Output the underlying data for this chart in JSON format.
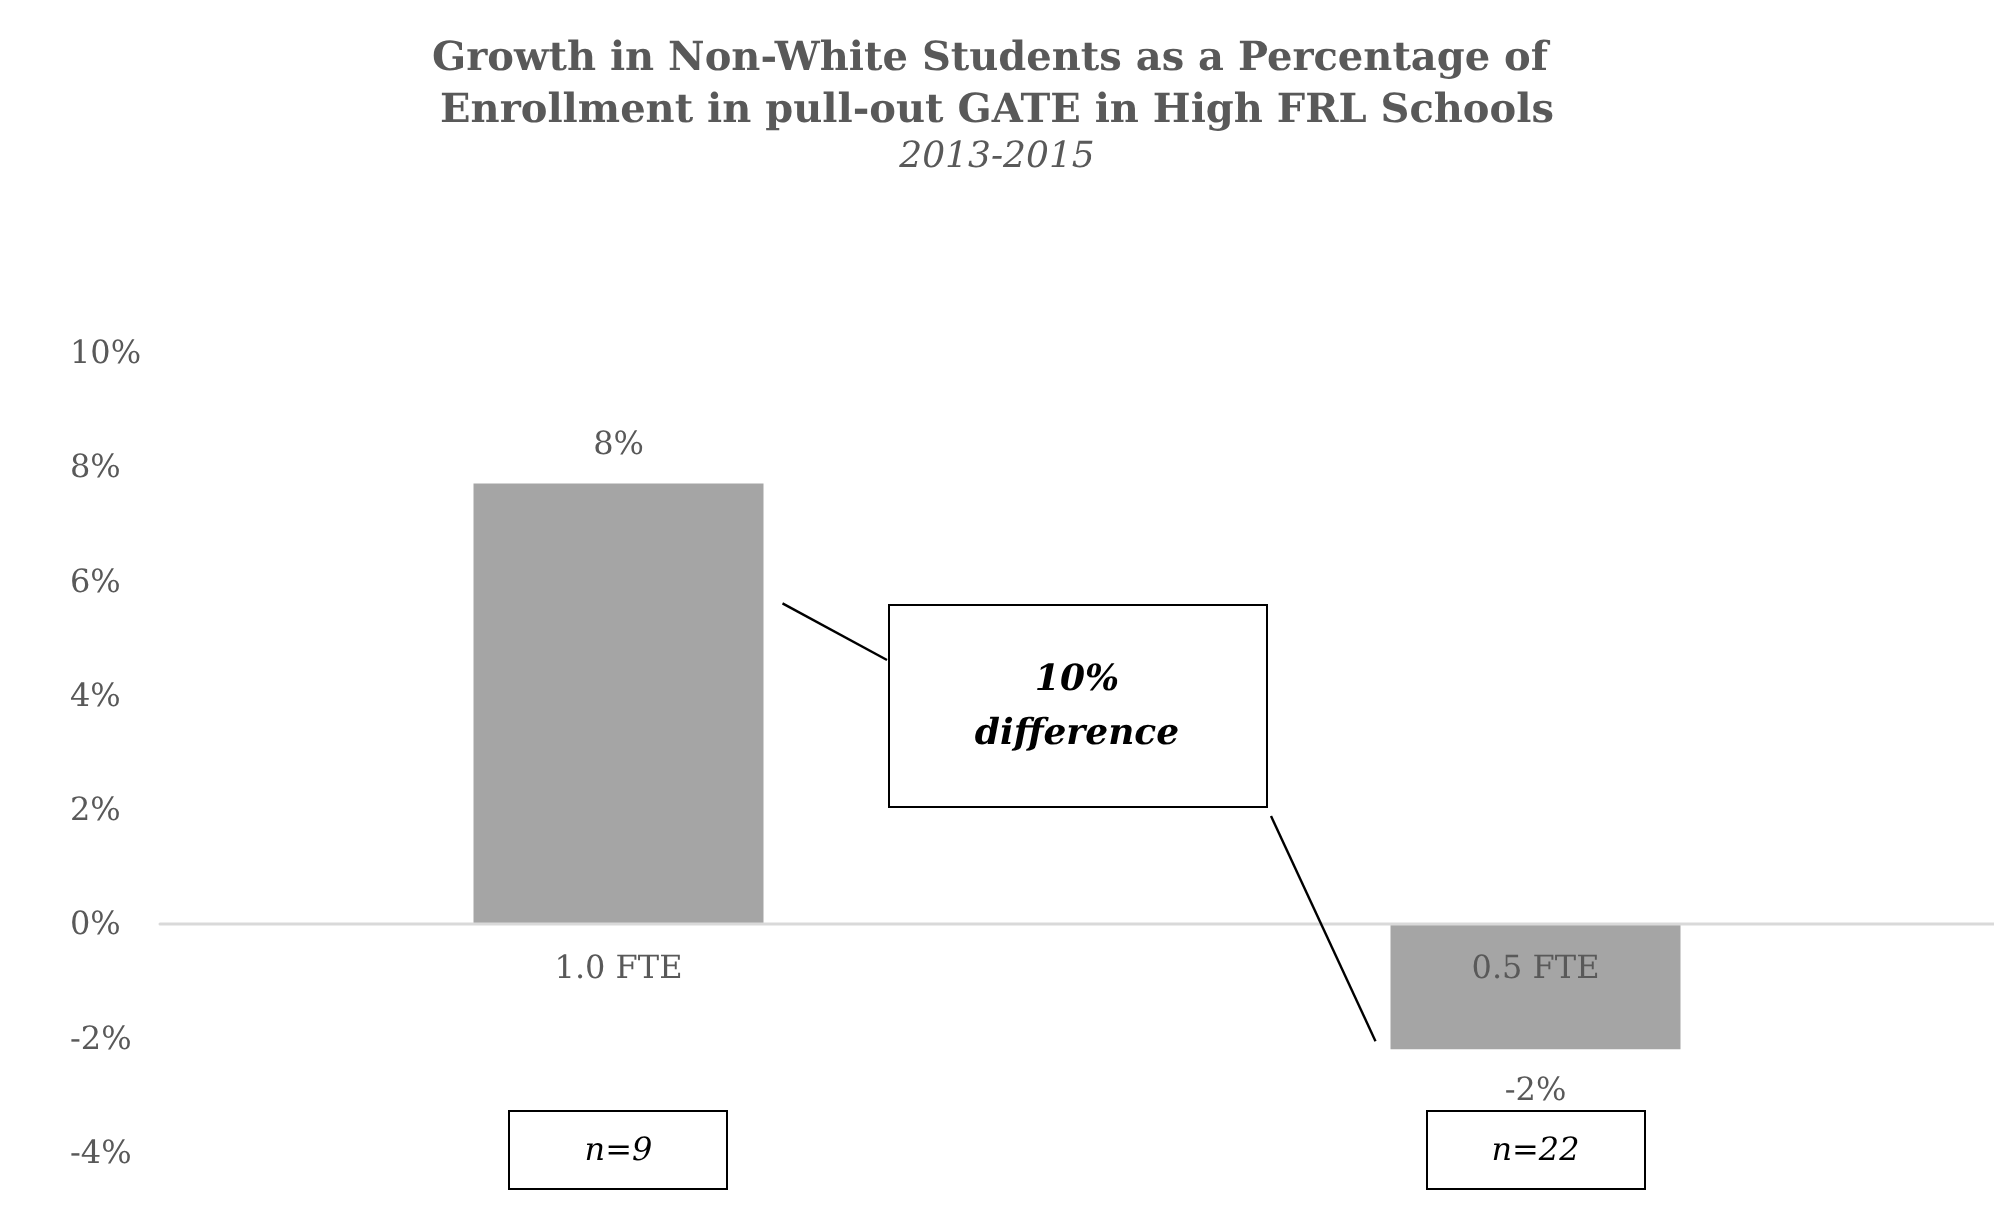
{
  "chart_data": {
    "type": "bar",
    "title": "Growth in Non-White Students as a Percentage of Enrollment in pull-out GATE in High FRL Schools",
    "subtitle": "2013-2015",
    "categories": [
      "1.0 FTE",
      "0.5 FTE"
    ],
    "values": [
      7.7,
      -2.2
    ],
    "value_labels": [
      "8%",
      "-2%"
    ],
    "color": "#a5a5a5",
    "ylim": [
      -4,
      10
    ],
    "yticks": [
      {
        "value": -4,
        "label": "-4%"
      },
      {
        "value": -2,
        "label": "-2%"
      },
      {
        "value": 0,
        "label": "0%"
      },
      {
        "value": 2,
        "label": "2%"
      },
      {
        "value": 4,
        "label": "4%"
      },
      {
        "value": 6,
        "label": "6%"
      },
      {
        "value": 8,
        "label": "8%"
      },
      {
        "value": 10,
        "label": "10%"
      }
    ],
    "annotations": [
      "10% difference",
      "n=9",
      "n=22"
    ]
  }
}
